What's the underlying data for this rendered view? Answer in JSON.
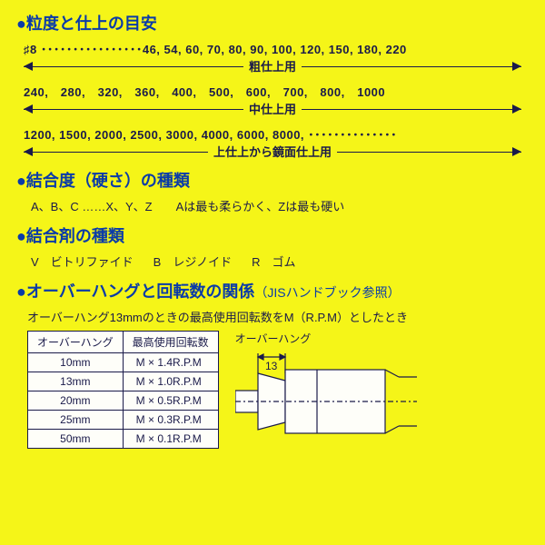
{
  "section1": {
    "title": "粒度と仕上の目安",
    "groups": [
      {
        "prefix": "♯8 ････････････････",
        "values": "46, 54, 60, 70, 80, 90, 100, 120, 150, 180, 220",
        "label": "粗仕上用"
      },
      {
        "prefix": "",
        "values": "240,　280,　320,　360,　400,　500,　600,　700,　800,　1000",
        "label": "中仕上用"
      },
      {
        "prefix": "",
        "values": "1200, 1500, 2000, 2500, 3000, 4000, 6000, 8000, ･･････････････",
        "label": "上仕上から鏡面仕上用"
      }
    ]
  },
  "section2": {
    "title": "結合度（硬さ）の種類",
    "text": "A、B、C ……X、Y、Z　　Aは最も柔らかく、Zは最も硬い"
  },
  "section3": {
    "title": "結合剤の種類",
    "items": [
      {
        "code": "V",
        "name": "ビトリファイド"
      },
      {
        "code": "B",
        "name": "レジノイド"
      },
      {
        "code": "R",
        "name": "ゴム"
      }
    ]
  },
  "section4": {
    "title": "オーバーハングと回転数の関係",
    "subtitle": "（JISハンドブック参照）",
    "note": "オーバーハング13mmのときの最高使用回転数をM（R.P.M）としたとき",
    "table": {
      "headers": [
        "オーバーハング",
        "最高使用回転数"
      ],
      "rows": [
        [
          "10mm",
          "M × 1.4R.P.M"
        ],
        [
          "13mm",
          "M × 1.0R.P.M"
        ],
        [
          "20mm",
          "M × 0.5R.P.M"
        ],
        [
          "25mm",
          "M × 0.3R.P.M"
        ],
        [
          "50mm",
          "M × 0.1R.P.M"
        ]
      ]
    },
    "diagram_label": "オーバーハング",
    "diagram_dim": "13",
    "colors": {
      "line": "#1a1a4a",
      "bg": "#f5f518"
    }
  }
}
